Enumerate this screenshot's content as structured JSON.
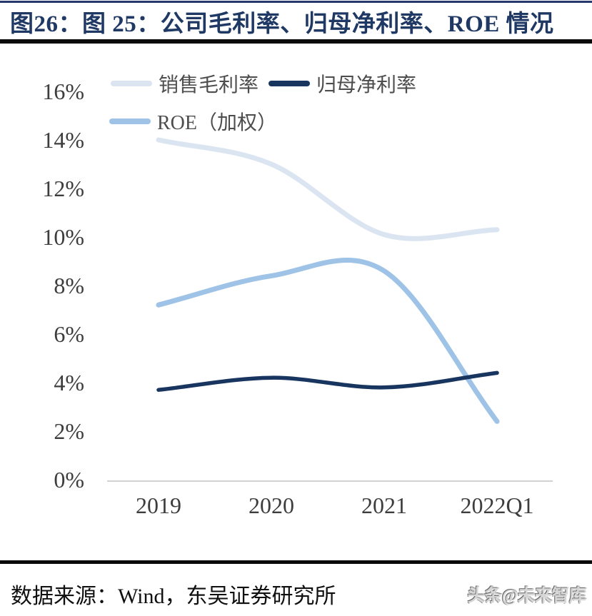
{
  "header": {
    "title": "图26：图 25：公司毛利率、归母净利率、ROE 情况"
  },
  "chart_data": {
    "type": "line",
    "categories": [
      "2019",
      "2020",
      "2021",
      "2022Q1"
    ],
    "series": [
      {
        "name": "销售毛利率",
        "values": [
          14.0,
          13.0,
          10.1,
          10.3
        ],
        "color": "#DBE5F2"
      },
      {
        "name": "归母净利率",
        "values": [
          3.7,
          4.2,
          3.8,
          4.4
        ],
        "color": "#17355F"
      },
      {
        "name": "ROE（加权）",
        "values": [
          7.2,
          8.4,
          8.6,
          2.4
        ],
        "color": "#9EC3E6"
      }
    ],
    "y_ticks": [
      "0%",
      "2%",
      "4%",
      "6%",
      "8%",
      "10%",
      "12%",
      "14%",
      "16%"
    ],
    "ylim": [
      0,
      16
    ],
    "grid": false,
    "smooth": true,
    "legend_position": "top-left",
    "axis_line_color": "#d2d2d2"
  },
  "footer": {
    "source": "数据来源：Wind，东吴证券研究所",
    "watermark": "头条@未来智库"
  }
}
